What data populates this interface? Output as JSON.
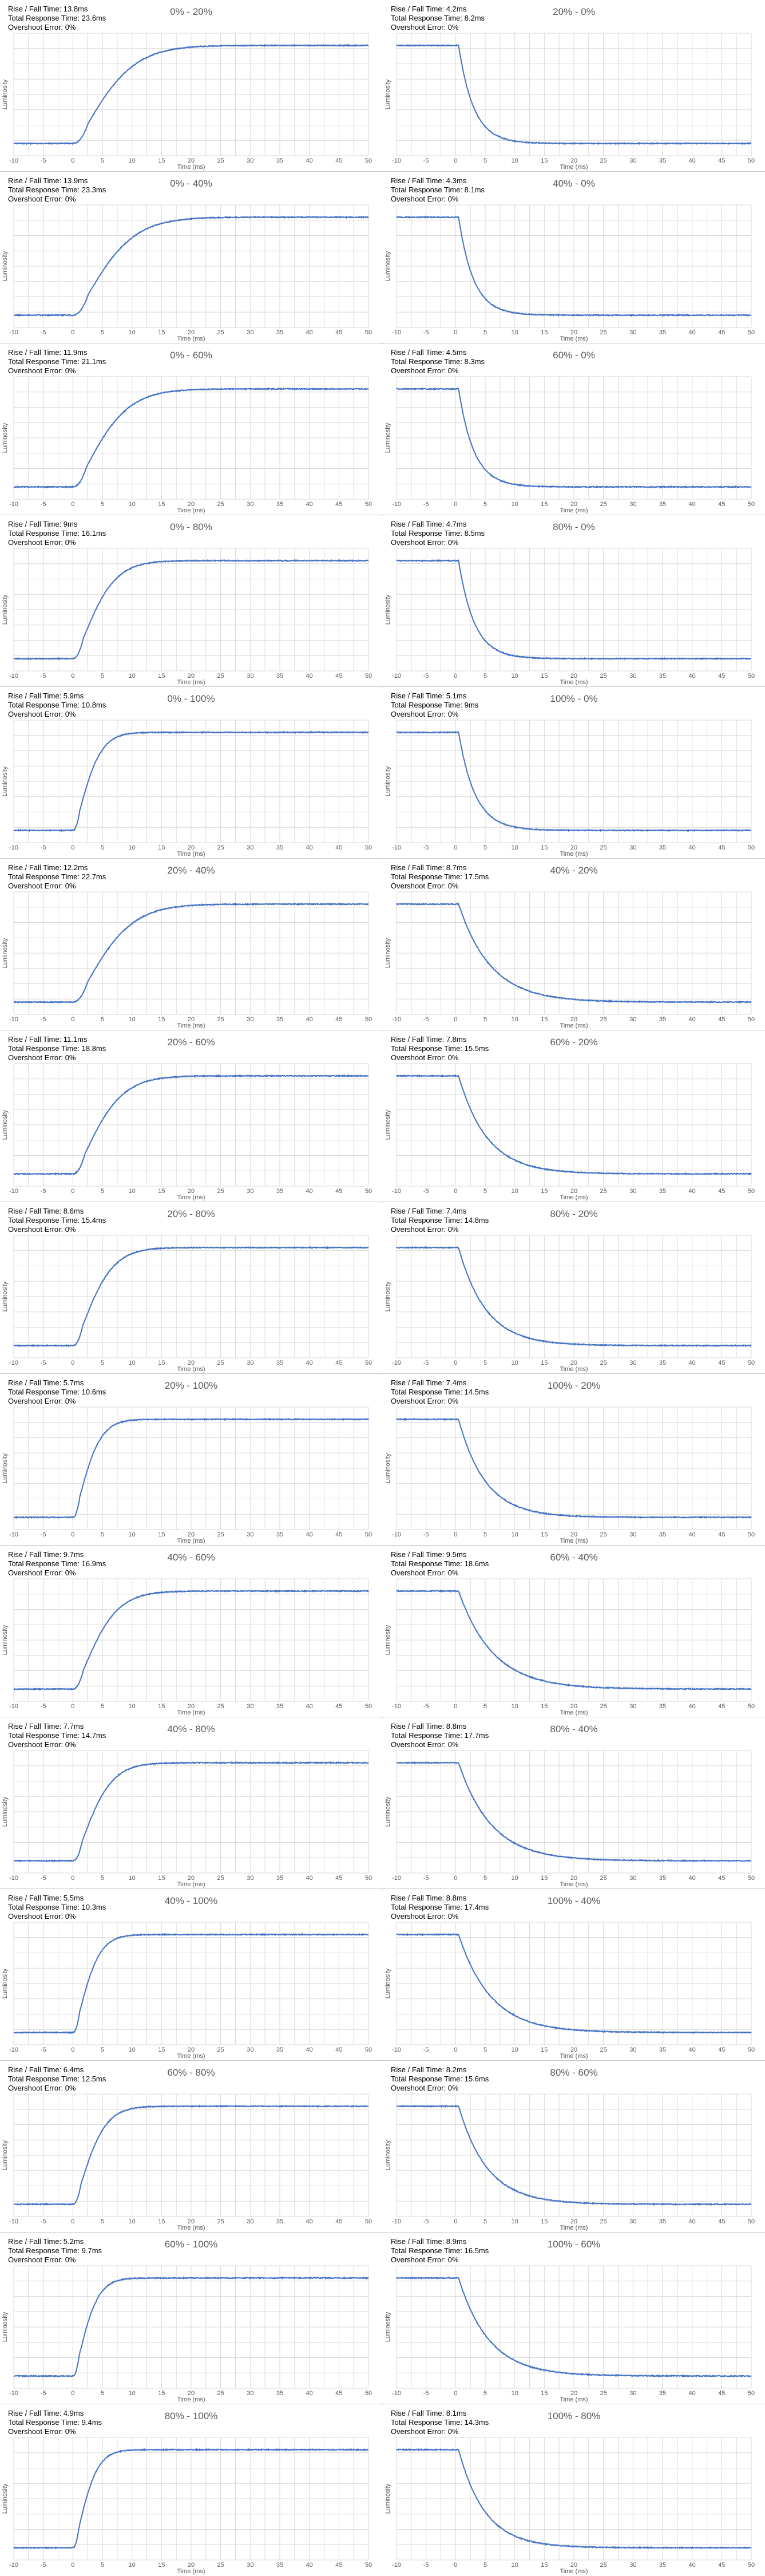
{
  "common": {
    "y_axis_label": "Luminosity",
    "x_axis_label": "Time (ms)",
    "rise_fall_label": "Rise / Fall Time:",
    "total_label": "Total Response Time:",
    "overshoot_label": "Overshoot Error:",
    "line_color": "#4472c4",
    "grid_color": "#d9d9d9"
  },
  "chart_data": [
    {
      "type": "line",
      "title": "0% - 20%",
      "direction": "rise",
      "rise_fall_time": "13.8ms",
      "total_response_time": "23.6ms",
      "overshoot_error": "0%",
      "xlim": [
        -10,
        50
      ],
      "xticks": [
        -10,
        -5,
        0,
        5,
        10,
        15,
        20,
        25,
        30,
        35,
        40,
        45,
        50
      ],
      "xlabel": "Time (ms)",
      "ylabel": "Luminosity"
    },
    {
      "type": "line",
      "title": "20% - 0%",
      "direction": "fall",
      "rise_fall_time": "4.2ms",
      "total_response_time": "8.2ms",
      "overshoot_error": "0%",
      "xlim": [
        -10,
        50
      ],
      "xticks": [
        -10,
        -5,
        0,
        5,
        10,
        15,
        20,
        25,
        30,
        35,
        40,
        45,
        50
      ],
      "xlabel": "Time (ms)",
      "ylabel": "Luminosity"
    },
    {
      "type": "line",
      "title": "0% - 40%",
      "direction": "rise",
      "rise_fall_time": "13.9ms",
      "total_response_time": "23.3ms",
      "overshoot_error": "0%",
      "xlim": [
        -10,
        50
      ],
      "xticks": [
        -10,
        -5,
        0,
        5,
        10,
        15,
        20,
        25,
        30,
        35,
        40,
        45,
        50
      ],
      "xlabel": "Time (ms)",
      "ylabel": "Luminosity"
    },
    {
      "type": "line",
      "title": "40% - 0%",
      "direction": "fall",
      "rise_fall_time": "4.3ms",
      "total_response_time": "8.1ms",
      "overshoot_error": "0%",
      "xlim": [
        -10,
        50
      ],
      "xticks": [
        -10,
        -5,
        0,
        5,
        10,
        15,
        20,
        25,
        30,
        35,
        40,
        45,
        50
      ],
      "xlabel": "Time (ms)",
      "ylabel": "Luminosity"
    },
    {
      "type": "line",
      "title": "0% - 60%",
      "direction": "rise",
      "rise_fall_time": "11.9ms",
      "total_response_time": "21.1ms",
      "overshoot_error": "0%",
      "xlim": [
        -10,
        50
      ],
      "xticks": [
        -10,
        -5,
        0,
        5,
        10,
        15,
        20,
        25,
        30,
        35,
        40,
        45,
        50
      ],
      "xlabel": "Time (ms)",
      "ylabel": "Luminosity"
    },
    {
      "type": "line",
      "title": "60% - 0%",
      "direction": "fall",
      "rise_fall_time": "4.5ms",
      "total_response_time": "8.3ms",
      "overshoot_error": "0%",
      "xlim": [
        -10,
        50
      ],
      "xticks": [
        -10,
        -5,
        0,
        5,
        10,
        15,
        20,
        25,
        30,
        35,
        40,
        45,
        50
      ],
      "xlabel": "Time (ms)",
      "ylabel": "Luminosity"
    },
    {
      "type": "line",
      "title": "0% - 80%",
      "direction": "rise",
      "rise_fall_time": "9ms",
      "total_response_time": "16.1ms",
      "overshoot_error": "0%",
      "xlim": [
        -10,
        50
      ],
      "xticks": [
        -10,
        -5,
        0,
        5,
        10,
        15,
        20,
        25,
        30,
        35,
        40,
        45,
        50
      ],
      "xlabel": "Time (ms)",
      "ylabel": "Luminosity"
    },
    {
      "type": "line",
      "title": "80% - 0%",
      "direction": "fall",
      "rise_fall_time": "4.7ms",
      "total_response_time": "8.5ms",
      "overshoot_error": "0%",
      "xlim": [
        -10,
        50
      ],
      "xticks": [
        -10,
        -5,
        0,
        5,
        10,
        15,
        20,
        25,
        30,
        35,
        40,
        45,
        50
      ],
      "xlabel": "Time (ms)",
      "ylabel": "Luminosity"
    },
    {
      "type": "line",
      "title": "0% - 100%",
      "direction": "rise",
      "rise_fall_time": "5.9ms",
      "total_response_time": "10.8ms",
      "overshoot_error": "0%",
      "xlim": [
        -10,
        50
      ],
      "xticks": [
        -10,
        -5,
        0,
        5,
        10,
        15,
        20,
        25,
        30,
        35,
        40,
        45,
        50
      ],
      "xlabel": "Time (ms)",
      "ylabel": "Luminosity"
    },
    {
      "type": "line",
      "title": "100% - 0%",
      "direction": "fall",
      "rise_fall_time": "5.1ms",
      "total_response_time": "9ms",
      "overshoot_error": "0%",
      "xlim": [
        -10,
        50
      ],
      "xticks": [
        -10,
        -5,
        0,
        5,
        10,
        15,
        20,
        25,
        30,
        35,
        40,
        45,
        50
      ],
      "xlabel": "Time (ms)",
      "ylabel": "Luminosity"
    },
    {
      "type": "line",
      "title": "20% - 40%",
      "direction": "rise",
      "rise_fall_time": "12.2ms",
      "total_response_time": "22.7ms",
      "overshoot_error": "0%",
      "xlim": [
        -10,
        50
      ],
      "xticks": [
        -10,
        -5,
        0,
        5,
        10,
        15,
        20,
        25,
        30,
        35,
        40,
        45,
        50
      ],
      "xlabel": "Time (ms)",
      "ylabel": "Luminosity"
    },
    {
      "type": "line",
      "title": "40% - 20%",
      "direction": "fall",
      "rise_fall_time": "8.7ms",
      "total_response_time": "17.5ms",
      "overshoot_error": "0%",
      "xlim": [
        -10,
        50
      ],
      "xticks": [
        -10,
        -5,
        0,
        5,
        10,
        15,
        20,
        25,
        30,
        35,
        40,
        45,
        50
      ],
      "xlabel": "Time (ms)",
      "ylabel": "Luminosity"
    },
    {
      "type": "line",
      "title": "20% - 60%",
      "direction": "rise",
      "rise_fall_time": "11.1ms",
      "total_response_time": "18.8ms",
      "overshoot_error": "0%",
      "xlim": [
        -10,
        50
      ],
      "xticks": [
        -10,
        -5,
        0,
        5,
        10,
        15,
        20,
        25,
        30,
        35,
        40,
        45,
        50
      ],
      "xlabel": "Time (ms)",
      "ylabel": "Luminosity"
    },
    {
      "type": "line",
      "title": "60% - 20%",
      "direction": "fall",
      "rise_fall_time": "7.8ms",
      "total_response_time": "15.5ms",
      "overshoot_error": "0%",
      "xlim": [
        -10,
        50
      ],
      "xticks": [
        -10,
        -5,
        0,
        5,
        10,
        15,
        20,
        25,
        30,
        35,
        40,
        45,
        50
      ],
      "xlabel": "Time (ms)",
      "ylabel": "Luminosity"
    },
    {
      "type": "line",
      "title": "20% - 80%",
      "direction": "rise",
      "rise_fall_time": "8.6ms",
      "total_response_time": "15.4ms",
      "overshoot_error": "0%",
      "xlim": [
        -10,
        50
      ],
      "xticks": [
        -10,
        -5,
        0,
        5,
        10,
        15,
        20,
        25,
        30,
        35,
        40,
        45,
        50
      ],
      "xlabel": "Time (ms)",
      "ylabel": "Luminosity"
    },
    {
      "type": "line",
      "title": "80% - 20%",
      "direction": "fall",
      "rise_fall_time": "7.4ms",
      "total_response_time": "14.8ms",
      "overshoot_error": "0%",
      "xlim": [
        -10,
        50
      ],
      "xticks": [
        -10,
        -5,
        0,
        5,
        10,
        15,
        20,
        25,
        30,
        35,
        40,
        45,
        50
      ],
      "xlabel": "Time (ms)",
      "ylabel": "Luminosity"
    },
    {
      "type": "line",
      "title": "20% - 100%",
      "direction": "rise",
      "rise_fall_time": "5.7ms",
      "total_response_time": "10.6ms",
      "overshoot_error": "0%",
      "xlim": [
        -10,
        50
      ],
      "xticks": [
        -10,
        -5,
        0,
        5,
        10,
        15,
        20,
        25,
        30,
        35,
        40,
        45,
        50
      ],
      "xlabel": "Time (ms)",
      "ylabel": "Luminosity"
    },
    {
      "type": "line",
      "title": "100% - 20%",
      "direction": "fall",
      "rise_fall_time": "7.4ms",
      "total_response_time": "14.5ms",
      "overshoot_error": "0%",
      "xlim": [
        -10,
        50
      ],
      "xticks": [
        -10,
        -5,
        0,
        5,
        10,
        15,
        20,
        25,
        30,
        35,
        40,
        45,
        50
      ],
      "xlabel": "Time (ms)",
      "ylabel": "Luminosity"
    },
    {
      "type": "line",
      "title": "40% - 60%",
      "direction": "rise",
      "rise_fall_time": "9.7ms",
      "total_response_time": "16.9ms",
      "overshoot_error": "0%",
      "xlim": [
        -10,
        50
      ],
      "xticks": [
        -10,
        -5,
        0,
        5,
        10,
        15,
        20,
        25,
        30,
        35,
        40,
        45,
        50
      ],
      "xlabel": "Time (ms)",
      "ylabel": "Luminosity"
    },
    {
      "type": "line",
      "title": "60% - 40%",
      "direction": "fall",
      "rise_fall_time": "9.5ms",
      "total_response_time": "18.6ms",
      "overshoot_error": "0%",
      "xlim": [
        -10,
        50
      ],
      "xticks": [
        -10,
        -5,
        0,
        5,
        10,
        15,
        20,
        25,
        30,
        35,
        40,
        45,
        50
      ],
      "xlabel": "Time (ms)",
      "ylabel": "Luminosity"
    },
    {
      "type": "line",
      "title": "40% - 80%",
      "direction": "rise",
      "rise_fall_time": "7.7ms",
      "total_response_time": "14.7ms",
      "overshoot_error": "0%",
      "xlim": [
        -10,
        50
      ],
      "xticks": [
        -10,
        -5,
        0,
        5,
        10,
        15,
        20,
        25,
        30,
        35,
        40,
        45,
        50
      ],
      "xlabel": "Time (ms)",
      "ylabel": "Luminosity"
    },
    {
      "type": "line",
      "title": "80% - 40%",
      "direction": "fall",
      "rise_fall_time": "8.8ms",
      "total_response_time": "17.7ms",
      "overshoot_error": "0%",
      "xlim": [
        -10,
        50
      ],
      "xticks": [
        -10,
        -5,
        0,
        5,
        10,
        15,
        20,
        25,
        30,
        35,
        40,
        45,
        50
      ],
      "xlabel": "Time (ms)",
      "ylabel": "Luminosity"
    },
    {
      "type": "line",
      "title": "40% - 100%",
      "direction": "rise",
      "rise_fall_time": "5.5ms",
      "total_response_time": "10.3ms",
      "overshoot_error": "0%",
      "xlim": [
        -10,
        50
      ],
      "xticks": [
        -10,
        -5,
        0,
        5,
        10,
        15,
        20,
        25,
        30,
        35,
        40,
        45,
        50
      ],
      "xlabel": "Time (ms)",
      "ylabel": "Luminosity"
    },
    {
      "type": "line",
      "title": "100% - 40%",
      "direction": "fall",
      "rise_fall_time": "8.8ms",
      "total_response_time": "17.4ms",
      "overshoot_error": "0%",
      "xlim": [
        -10,
        50
      ],
      "xticks": [
        -10,
        -5,
        0,
        5,
        10,
        15,
        20,
        25,
        30,
        35,
        40,
        45,
        50
      ],
      "xlabel": "Time (ms)",
      "ylabel": "Luminosity"
    },
    {
      "type": "line",
      "title": "60% - 80%",
      "direction": "rise",
      "rise_fall_time": "6.4ms",
      "total_response_time": "12.5ms",
      "overshoot_error": "0%",
      "xlim": [
        -10,
        50
      ],
      "xticks": [
        -10,
        -5,
        0,
        5,
        10,
        15,
        20,
        25,
        30,
        35,
        40,
        45,
        50
      ],
      "xlabel": "Time (ms)",
      "ylabel": "Luminosity"
    },
    {
      "type": "line",
      "title": "80% - 60%",
      "direction": "fall",
      "rise_fall_time": "8.2ms",
      "total_response_time": "15.6ms",
      "overshoot_error": "0%",
      "xlim": [
        -10,
        50
      ],
      "xticks": [
        -10,
        -5,
        0,
        5,
        10,
        15,
        20,
        25,
        30,
        35,
        40,
        45,
        50
      ],
      "xlabel": "Time (ms)",
      "ylabel": "Luminosity"
    },
    {
      "type": "line",
      "title": "60% - 100%",
      "direction": "rise",
      "rise_fall_time": "5.2ms",
      "total_response_time": "9.7ms",
      "overshoot_error": "0%",
      "xlim": [
        -10,
        50
      ],
      "xticks": [
        -10,
        -5,
        0,
        5,
        10,
        15,
        20,
        25,
        30,
        35,
        40,
        45,
        50
      ],
      "xlabel": "Time (ms)",
      "ylabel": "Luminosity"
    },
    {
      "type": "line",
      "title": "100% - 60%",
      "direction": "fall",
      "rise_fall_time": "8.9ms",
      "total_response_time": "16.5ms",
      "overshoot_error": "0%",
      "xlim": [
        -10,
        50
      ],
      "xticks": [
        -10,
        -5,
        0,
        5,
        10,
        15,
        20,
        25,
        30,
        35,
        40,
        45,
        50
      ],
      "xlabel": "Time (ms)",
      "ylabel": "Luminosity"
    },
    {
      "type": "line",
      "title": "80% - 100%",
      "direction": "rise",
      "rise_fall_time": "4.9ms",
      "total_response_time": "9.4ms",
      "overshoot_error": "0%",
      "xlim": [
        -10,
        50
      ],
      "xticks": [
        -10,
        -5,
        0,
        5,
        10,
        15,
        20,
        25,
        30,
        35,
        40,
        45,
        50
      ],
      "xlabel": "Time (ms)",
      "ylabel": "Luminosity"
    },
    {
      "type": "line",
      "title": "100% - 80%",
      "direction": "fall",
      "rise_fall_time": "8.1ms",
      "total_response_time": "14.3ms",
      "overshoot_error": "0%",
      "xlim": [
        -10,
        50
      ],
      "xticks": [
        -10,
        -5,
        0,
        5,
        10,
        15,
        20,
        25,
        30,
        35,
        40,
        45,
        50
      ],
      "xlabel": "Time (ms)",
      "ylabel": "Luminosity"
    }
  ]
}
